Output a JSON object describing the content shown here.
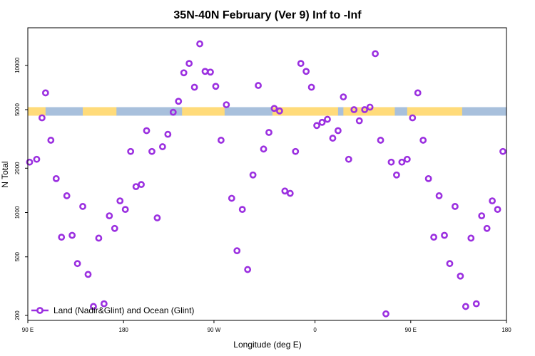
{
  "chart_data": {
    "type": "scatter",
    "title": "35N-40N February (Ver 9)   Inf to -Inf",
    "xlabel": "Longitude (deg E)",
    "ylabel": "N Total",
    "xlim": [
      -90,
      180
    ],
    "ylim": [
      185,
      18000
    ],
    "y_scale": "log",
    "grid": false,
    "x_ticks": [
      {
        "value": -90,
        "label": "90 E"
      },
      {
        "value": -36,
        "label": "180"
      },
      {
        "value": 15,
        "label": "90 W"
      },
      {
        "value": 72,
        "label": "0"
      },
      {
        "value": 126,
        "label": "90 E"
      },
      {
        "value": 180,
        "label": "180"
      }
    ],
    "y_ticks": [
      {
        "value": 200,
        "label": "200"
      },
      {
        "value": 500,
        "label": "500"
      },
      {
        "value": 1000,
        "label": "1000"
      },
      {
        "value": 2000,
        "label": "2000"
      },
      {
        "value": 5000,
        "label": "5000"
      },
      {
        "value": 10000,
        "label": "10000"
      }
    ],
    "band": {
      "y_low": 4550,
      "y_high": 5200,
      "ocean_color": "#a8c0dc",
      "land_color": "#ffdb7a",
      "land_ranges": [
        [
          -90,
          -80
        ],
        [
          -59,
          -40
        ],
        [
          -3,
          21
        ],
        [
          48,
          85
        ],
        [
          88,
          117
        ],
        [
          124,
          155
        ]
      ]
    },
    "legend": {
      "position": "bottom-left",
      "entries": [
        "Land (Nadir&Glint) and Ocean (Glint)"
      ]
    },
    "series": [
      {
        "name": "Land (Nadir&Glint) and Ocean (Glint)",
        "color": "#9b30e0",
        "marker": "open-circle",
        "x": [
          -89,
          -85,
          -82,
          -80,
          -77,
          -74,
          -71,
          -68,
          -65,
          -62,
          -59,
          -56,
          -53,
          -50,
          -47,
          -44,
          -41,
          -38,
          -35,
          -32,
          -29,
          -26,
          -23,
          -20,
          -17,
          -14,
          -11,
          -8,
          -5,
          -2,
          1,
          4,
          7,
          10,
          13,
          16,
          19,
          22,
          25,
          28,
          31,
          34,
          37,
          40,
          43,
          46,
          49,
          52,
          55,
          58,
          61,
          64,
          67,
          70,
          73,
          76,
          79,
          82,
          85,
          88,
          91,
          94,
          97,
          100,
          103,
          106,
          109,
          112,
          115,
          118,
          121,
          124,
          127,
          130,
          133,
          136,
          139,
          142,
          145,
          148,
          151,
          154,
          157,
          160,
          163,
          166,
          169,
          172,
          175,
          178
        ],
        "y": [
          2200,
          2300,
          4400,
          6500,
          3100,
          1700,
          680,
          1300,
          700,
          450,
          1100,
          380,
          230,
          670,
          240,
          950,
          780,
          1200,
          1050,
          2600,
          1500,
          1550,
          3600,
          2600,
          920,
          2800,
          3400,
          4800,
          5700,
          8900,
          10300,
          7100,
          14000,
          9100,
          9000,
          7200,
          3100,
          5400,
          1250,
          550,
          1050,
          410,
          1800,
          7300,
          2700,
          3500,
          5100,
          4900,
          1400,
          1350,
          2600,
          10300,
          9100,
          7100,
          3900,
          4100,
          4300,
          3200,
          3600,
          6100,
          2300,
          5000,
          4200,
          5000,
          5200,
          12000,
          3100,
          205,
          2200,
          1800,
          2200,
          2300,
          4400,
          6500,
          3100,
          1700,
          680,
          1300,
          700,
          450,
          1100,
          370,
          230,
          670,
          240,
          950,
          780,
          1200,
          1050,
          2600
        ]
      }
    ]
  }
}
